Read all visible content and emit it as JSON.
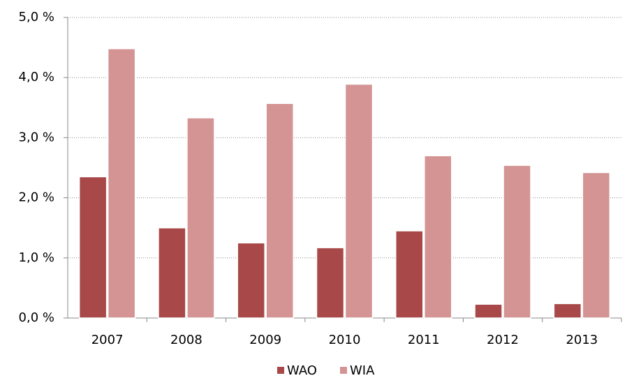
{
  "chart_data": {
    "type": "bar",
    "categories": [
      "2007",
      "2008",
      "2009",
      "2010",
      "2011",
      "2012",
      "2013"
    ],
    "series": [
      {
        "name": "WAO",
        "color": "#a84848",
        "values": [
          2.35,
          1.5,
          1.25,
          1.17,
          1.45,
          0.23,
          0.24
        ]
      },
      {
        "name": "WIA",
        "color": "#d39493",
        "values": [
          4.48,
          3.33,
          3.57,
          3.89,
          2.7,
          2.54,
          2.42
        ]
      }
    ],
    "ylim": [
      0,
      5
    ],
    "yticks": [
      {
        "value": 0,
        "label": "0,0 %"
      },
      {
        "value": 1,
        "label": "1,0 %"
      },
      {
        "value": 2,
        "label": "2,0 %"
      },
      {
        "value": 3,
        "label": "3,0 %"
      },
      {
        "value": 4,
        "label": "4,0 %"
      },
      {
        "value": 5,
        "label": "5,0 %"
      }
    ],
    "grid": true
  }
}
